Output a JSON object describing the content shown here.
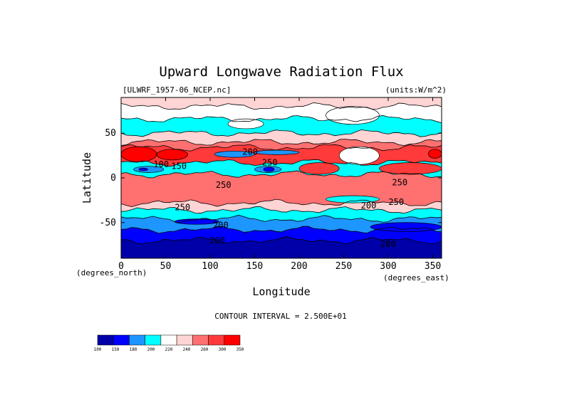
{
  "chart_data": {
    "type": "heatmap",
    "title": "Upward Longwave Radiation Flux",
    "file_label": "[ULWRF_1957-06_NCEP.nc]",
    "units_label": "(units:W/m^2)",
    "xlabel": "Longitude",
    "ylabel": "Latitude",
    "x_unit_label": "(degrees_east)",
    "y_unit_label": "(degrees_north)",
    "xlim": [
      0,
      360
    ],
    "ylim": [
      -90,
      90
    ],
    "x_ticks": [
      0,
      50,
      100,
      150,
      200,
      250,
      300,
      350
    ],
    "y_ticks": [
      -50,
      0,
      50
    ],
    "contour_interval_text": "CONTOUR INTERVAL = 2.500E+01",
    "contour_labels": [
      {
        "text": "200",
        "x": 145,
        "y": 29
      },
      {
        "text": "100",
        "x": 45,
        "y": 15
      },
      {
        "text": "150",
        "x": 65,
        "y": 13
      },
      {
        "text": "250",
        "x": 167,
        "y": 17
      },
      {
        "text": "250",
        "x": 115,
        "y": -8
      },
      {
        "text": "250",
        "x": 313,
        "y": -5
      },
      {
        "text": "250",
        "x": 69,
        "y": -33
      },
      {
        "text": "250",
        "x": 309,
        "y": -27
      },
      {
        "text": "200",
        "x": 278,
        "y": -31
      },
      {
        "text": "200",
        "x": 112,
        "y": -53
      },
      {
        "text": "200",
        "x": 108,
        "y": -70
      },
      {
        "text": "200",
        "x": 300,
        "y": -74
      }
    ],
    "colorbar": {
      "levels": [
        "100",
        "150",
        "180",
        "200",
        "220",
        "240",
        "260",
        "300",
        "350"
      ],
      "colors": [
        "#0000a8",
        "#0000ff",
        "#1e96ff",
        "#00ffff",
        "#ffffff",
        "#ffd4d4",
        "#ff7070",
        "#ff3a3a",
        "#ff0000"
      ]
    },
    "bands": [
      {
        "ymax": 90,
        "ymin": 80,
        "color": "#ffd4d4"
      },
      {
        "ymax": 80,
        "ymin": 66,
        "color": "#ffffff"
      },
      {
        "ymax": 66,
        "ymin": 50,
        "color": "#00ffff"
      },
      {
        "ymax": 50,
        "ymin": 40,
        "color": "#ffd4d4"
      },
      {
        "ymax": 40,
        "ymin": 34,
        "color": "#ff7070"
      },
      {
        "ymax": 34,
        "ymin": 17,
        "color": "#ff3a3a"
      },
      {
        "ymax": 17,
        "ymin": 4,
        "color": "#00ffff"
      },
      {
        "ymax": 4,
        "ymin": -28,
        "color": "#ff7070"
      },
      {
        "ymax": -28,
        "ymin": -36,
        "color": "#ffd4d4"
      },
      {
        "ymax": -36,
        "ymin": -46,
        "color": "#00ffff"
      },
      {
        "ymax": -46,
        "ymin": -58,
        "color": "#1e96ff"
      },
      {
        "ymax": -58,
        "ymin": -70,
        "color": "#0000ff"
      },
      {
        "ymax": -70,
        "ymin": -90,
        "color": "#0000a8"
      }
    ],
    "features": [
      {
        "x": [
          0,
          40
        ],
        "y": [
          18,
          35
        ],
        "color": "#ff0000"
      },
      {
        "x": [
          40,
          75
        ],
        "y": [
          20,
          32
        ],
        "color": "#ff0000"
      },
      {
        "x": [
          345,
          360
        ],
        "y": [
          22,
          32
        ],
        "color": "#ff0000"
      },
      {
        "x": [
          105,
          150
        ],
        "y": [
          23,
          30
        ],
        "color": "#1e96ff"
      },
      {
        "x": [
          150,
          200
        ],
        "y": [
          26,
          31
        ],
        "color": "#1e96ff"
      },
      {
        "x": [
          14,
          48
        ],
        "y": [
          6,
          13
        ],
        "color": "#1e96ff"
      },
      {
        "x": [
          150,
          180
        ],
        "y": [
          6,
          13
        ],
        "color": "#1e96ff"
      },
      {
        "x": [
          20,
          30
        ],
        "y": [
          8,
          11
        ],
        "color": "#0000ff"
      },
      {
        "x": [
          160,
          172
        ],
        "y": [
          7,
          12
        ],
        "color": "#0000ff"
      },
      {
        "x": [
          245,
          290
        ],
        "y": [
          15,
          35
        ],
        "color": "#ffffff"
      },
      {
        "x": [
          200,
          245
        ],
        "y": [
          4,
          17
        ],
        "color": "#ff3a3a"
      },
      {
        "x": [
          290,
          360
        ],
        "y": [
          4,
          17
        ],
        "color": "#ff3a3a"
      },
      {
        "x": [
          230,
          290
        ],
        "y": [
          -28,
          -20
        ],
        "color": "#00ffff"
      },
      {
        "x": [
          120,
          160
        ],
        "y": [
          55,
          66
        ],
        "color": "#ffffff"
      },
      {
        "x": [
          230,
          290
        ],
        "y": [
          60,
          80
        ],
        "color": "#ffffff"
      },
      {
        "x": [
          60,
          110
        ],
        "y": [
          -52,
          -46
        ],
        "color": "#0000ff"
      },
      {
        "x": [
          280,
          360
        ],
        "y": [
          -60,
          -50
        ],
        "color": "#0000ff"
      }
    ]
  }
}
